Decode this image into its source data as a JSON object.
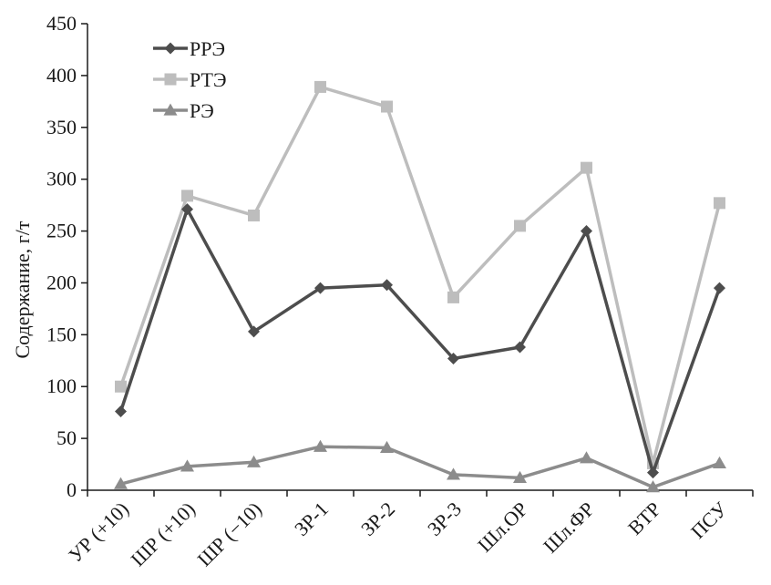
{
  "chart_data": {
    "type": "line",
    "title": "",
    "xlabel": "",
    "ylabel": "Содержание, г/т",
    "ylim": [
      0,
      450
    ],
    "yticks": [
      0,
      50,
      100,
      150,
      200,
      250,
      300,
      350,
      400,
      450
    ],
    "grid": false,
    "legend_position": "top-left",
    "categories": [
      "УР (+10)",
      "ШР (+10)",
      "ШР (−10)",
      "ЗР-1",
      "ЗР-2",
      "ЗР-3",
      "Шл.ОР",
      "Шл.ФР",
      "ВТР",
      "ПСУ"
    ],
    "series": [
      {
        "name": "РРЭ",
        "marker": "diamond",
        "color": "#4d4d4d",
        "values": [
          76,
          271,
          153,
          195,
          198,
          127,
          138,
          250,
          17,
          195
        ]
      },
      {
        "name": "РТЭ",
        "marker": "square",
        "color": "#bdbdbd",
        "values": [
          100,
          284,
          265,
          389,
          370,
          186,
          255,
          311,
          26,
          277
        ]
      },
      {
        "name": "РЭ",
        "marker": "triangle",
        "color": "#8c8c8c",
        "values": [
          6,
          23,
          27,
          42,
          41,
          15,
          12,
          31,
          3,
          26
        ]
      }
    ]
  }
}
